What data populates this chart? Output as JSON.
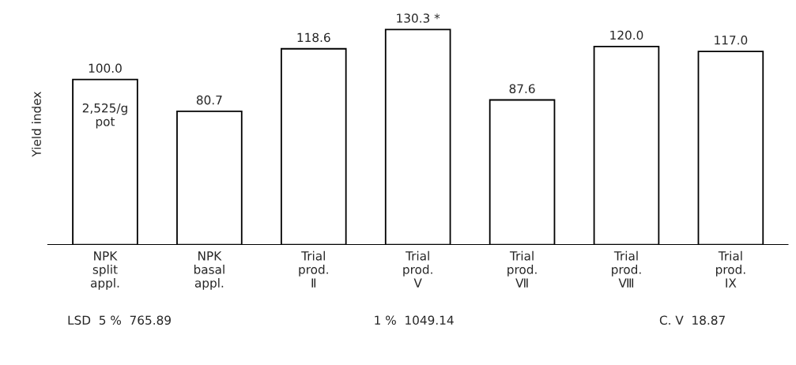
{
  "chart_data": {
    "type": "bar",
    "ylabel": "Yield index",
    "categories": [
      "NPK\nsplit\nappl.",
      "NPK\nbasal\nappl.",
      "Trial\nprod.\nⅡ",
      "Trial\nprod.\nⅤ",
      "Trial\nprod.\nⅦ",
      "Trial\nprod.\nⅧ",
      "Trial\nprod.\nIX"
    ],
    "values": [
      100.0,
      80.7,
      118.6,
      130.3,
      87.6,
      120.0,
      117.0
    ],
    "value_labels": [
      "100.0",
      "80.7",
      "118.6",
      "130.3 *",
      "87.6",
      "120.0",
      "117.0"
    ],
    "color": "#ffffff",
    "annotations": [
      "2,525/g\npot",
      "LSD  5 %  765.89",
      "1 %  1049.14",
      "C. V  18.87"
    ],
    "grid": false,
    "legend": false
  }
}
